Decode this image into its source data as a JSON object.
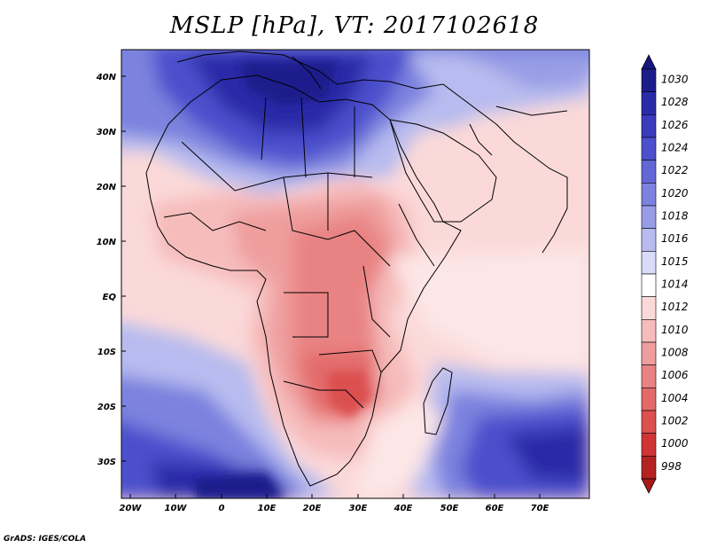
{
  "map": {
    "title": "MSLP [hPa], VT: 2017102618",
    "credit": "GrADS: IGES/COLA",
    "lat_labels": [
      "40N",
      "30N",
      "20N",
      "10N",
      "EQ",
      "10S",
      "20S",
      "30S"
    ],
    "lon_labels": [
      "20W",
      "10W",
      "0",
      "10E",
      "20E",
      "30E",
      "40E",
      "50E",
      "60E",
      "70E"
    ],
    "extent": {
      "lon": [
        -22,
        81
      ],
      "lat": [
        -37,
        45
      ]
    }
  },
  "colorbar": {
    "levels": [
      {
        "label": "1030",
        "color": "#1c1c8c"
      },
      {
        "label": "1028",
        "color": "#2a2ba8"
      },
      {
        "label": "1026",
        "color": "#3a3bbd"
      },
      {
        "label": "1024",
        "color": "#4c50cc"
      },
      {
        "label": "1022",
        "color": "#6367d6"
      },
      {
        "label": "1020",
        "color": "#7c82de"
      },
      {
        "label": "1018",
        "color": "#989de6"
      },
      {
        "label": "1016",
        "color": "#b7bbef"
      },
      {
        "label": "1015",
        "color": "#d9dcf8"
      },
      {
        "label": "1014",
        "color": "#ffffff"
      },
      {
        "label": "1012",
        "color": "#fbd9d9"
      },
      {
        "label": "1010",
        "color": "#f6bcbc"
      },
      {
        "label": "1008",
        "color": "#ef9e9e"
      },
      {
        "label": "1006",
        "color": "#e98383"
      },
      {
        "label": "1004",
        "color": "#e36a6a"
      },
      {
        "label": "1002",
        "color": "#dc5050"
      },
      {
        "label": "1000",
        "color": "#cf3535"
      },
      {
        "label": "998",
        "color": "#b52222"
      }
    ],
    "min_color": "#a81a1a",
    "max_color": "#161680"
  }
}
